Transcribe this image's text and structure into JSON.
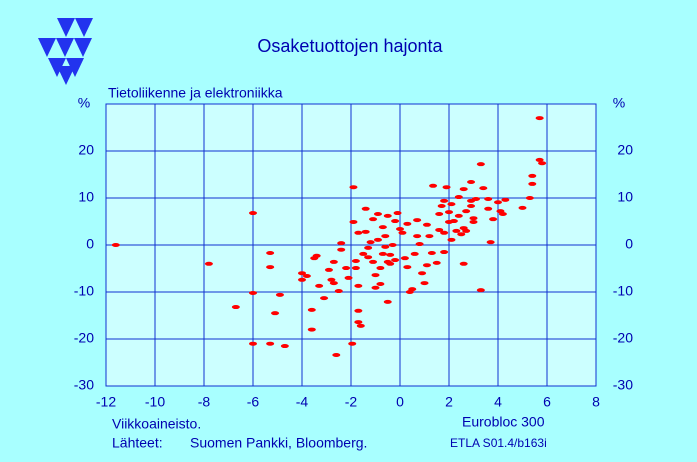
{
  "chart_data": {
    "type": "scatter",
    "title": "Osaketuottojen  hajonta",
    "subtitle": "Tietoliikenne ja elektroniikka",
    "y_axis_label": "%",
    "x_axis_label": "Eurobloc 300",
    "note": "Viikkoaineisto.",
    "sources_label": "Lähteet:",
    "sources": "Suomen Pankki, Bloomberg.",
    "code": "ETLA S01.4/b163i",
    "color": "#ff0000",
    "grid": true,
    "xlim": [
      -12,
      8
    ],
    "xticks": [
      -12,
      -10,
      -8,
      -6,
      -4,
      -2,
      0,
      2,
      4,
      6,
      8
    ],
    "ylim": [
      -30,
      30
    ],
    "yticks": [
      -30,
      -20,
      -10,
      0,
      10,
      20
    ],
    "x": [
      -11.6,
      -7.8,
      -6.7,
      -6.0,
      -6.0,
      -6.0,
      -5.3,
      -5.3,
      -5.1,
      -4.9,
      -5.3,
      -4.7,
      -4.0,
      -4.0,
      -3.8,
      -3.5,
      -3.4,
      -3.6,
      -3.6,
      -3.3,
      -3.1,
      -2.9,
      -2.8,
      -2.7,
      -2.7,
      -2.5,
      -2.6,
      -2.4,
      -2.4,
      -2.2,
      -2.1,
      -1.95,
      -1.9,
      -1.9,
      -1.8,
      -1.8,
      -1.7,
      -1.7,
      -1.7,
      -1.7,
      -1.6,
      -1.5,
      -1.4,
      -1.4,
      -1.3,
      -1.3,
      -1.2,
      -1.1,
      -1.1,
      -1.0,
      -1.0,
      -0.9,
      -0.9,
      -0.8,
      -0.8,
      -0.7,
      -0.7,
      -0.6,
      -0.6,
      -0.5,
      -0.5,
      -0.5,
      -0.4,
      -0.4,
      -0.3,
      -0.2,
      -0.2,
      -0.1,
      0,
      0.1,
      0.2,
      0.3,
      0.3,
      0.4,
      0.5,
      0.6,
      0.7,
      0.7,
      0.8,
      0.9,
      1.0,
      1.1,
      1.1,
      1.2,
      1.3,
      1.35,
      1.5,
      1.6,
      1.6,
      1.7,
      1.8,
      1.8,
      1.8,
      1.9,
      2.0,
      2.0,
      2.1,
      2.1,
      2.2,
      2.3,
      2.4,
      2.4,
      2.5,
      2.6,
      2.6,
      2.7,
      2.7,
      2.6,
      2.9,
      2.9,
      2.9,
      3.0,
      3.0,
      3.1,
      3.3,
      3.3,
      3.4,
      3.6,
      3.6,
      3.7,
      3.8,
      4.0,
      4.1,
      4.2,
      4.3,
      5.0,
      5.3,
      5.4,
      5.4,
      5.7,
      5.7,
      5.8
    ],
    "values": [
      0,
      -4,
      -13.2,
      6.8,
      -10.2,
      -21,
      -1.7,
      -4.7,
      -14.5,
      -10.6,
      -21,
      -21.5,
      -6,
      -7.4,
      -6.6,
      -2.8,
      -2.3,
      -13.8,
      -18,
      -8.7,
      -11.3,
      -5.3,
      -7.4,
      -8.1,
      -3.6,
      -9.8,
      -23.4,
      0.4,
      -1,
      -4.9,
      -7,
      -21,
      12.3,
      4.9,
      -3.4,
      -4.9,
      -8.7,
      2.6,
      -14,
      -16.4,
      -17.2,
      -1.9,
      2.8,
      7.7,
      -0.6,
      -2.6,
      0.6,
      -3.6,
      5.5,
      -6.4,
      -9.1,
      6.6,
      1.1,
      -4.9,
      -8.3,
      -1.9,
      3.8,
      -0.4,
      1.9,
      -3.6,
      -12.1,
      6.2,
      -2.1,
      -4,
      0,
      5.1,
      -3.2,
      6.8,
      3.4,
      2.6,
      -2.8,
      -4.7,
      4.5,
      -10,
      -9.4,
      -1.9,
      5.3,
      1.9,
      0.2,
      -6,
      -8.1,
      4.3,
      -4.3,
      1.9,
      -1.7,
      12.6,
      -3.8,
      3.2,
      6.6,
      8.3,
      9.4,
      -1.5,
      2.6,
      12.3,
      4.9,
      7.0,
      1.1,
      8.7,
      5.1,
      3.0,
      6.2,
      10.2,
      2.3,
      11.9,
      3.6,
      7.2,
      3.0,
      -4,
      9.4,
      13.4,
      8.3,
      5.7,
      4.9,
      9.8,
      -9.6,
      17.2,
      12.1,
      7.7,
      9.8,
      0.6,
      5.5,
      9.1,
      7.2,
      6.6,
      9.6,
      7.9,
      10,
      13,
      14.7,
      27,
      18.1,
      17.4
    ]
  }
}
